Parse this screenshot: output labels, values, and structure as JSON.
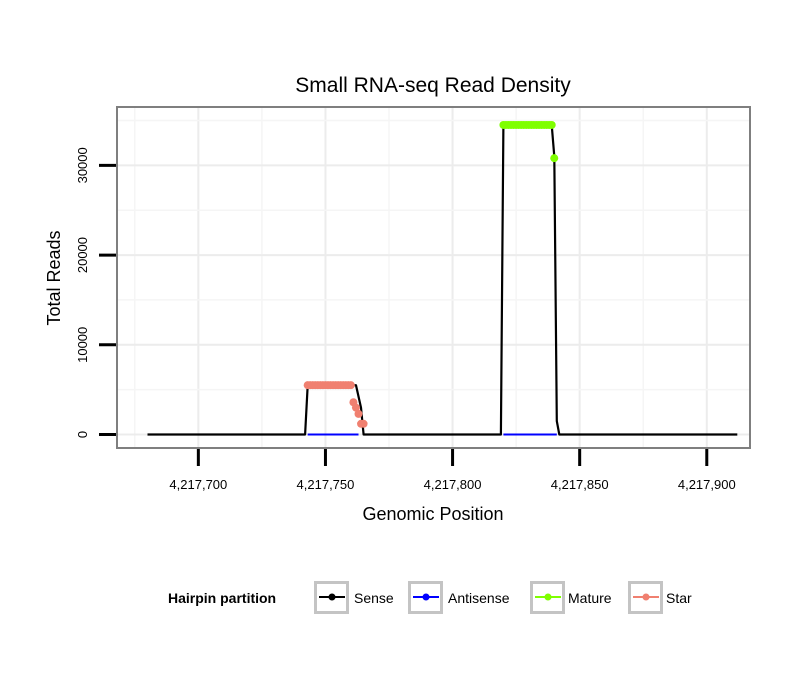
{
  "chart_data": {
    "type": "line",
    "title": "Small RNA-seq Read Density",
    "xlabel": "Genomic Position",
    "ylabel": "Total Reads",
    "xlim": [
      4217668,
      4217917
    ],
    "ylim": [
      -1500,
      36500
    ],
    "x_ticks": [
      4217700,
      4217750,
      4217800,
      4217850,
      4217900
    ],
    "x_tick_labels": [
      "4,217,700",
      "4,217,750",
      "4,217,800",
      "4,217,850",
      "4,217,900"
    ],
    "y_ticks": [
      0,
      10000,
      20000,
      30000
    ],
    "y_tick_labels": [
      "0",
      "10000",
      "20000",
      "30000"
    ],
    "grid": true,
    "legend": {
      "title": "Hairpin partition",
      "placement": "bottom",
      "entries": [
        "Sense",
        "Antisense",
        "Mature",
        "Star"
      ]
    },
    "series": [
      {
        "name": "Sense",
        "color": "#000000",
        "style": "line",
        "x": [
          4217680,
          4217742,
          4217743,
          4217762,
          4217764,
          4217765,
          4217819,
          4217820,
          4217839,
          4217840,
          4217841,
          4217842,
          4217912
        ],
        "y": [
          0,
          0,
          5500,
          5500,
          3000,
          0,
          0,
          34500,
          34500,
          31000,
          1500,
          0,
          0
        ]
      },
      {
        "name": "Antisense",
        "color": "#0000ff",
        "style": "line",
        "x": [
          4217743,
          4217763,
          4217820,
          4217841
        ],
        "y": [
          0,
          0,
          0,
          0
        ],
        "segments": [
          [
            0,
            1
          ],
          [
            2,
            3
          ]
        ]
      },
      {
        "name": "Mature",
        "color": "#7fff00",
        "style": "points",
        "x": [
          4217820,
          4217821,
          4217822,
          4217823,
          4217824,
          4217825,
          4217826,
          4217827,
          4217828,
          4217829,
          4217830,
          4217831,
          4217832,
          4217833,
          4217834,
          4217835,
          4217836,
          4217837,
          4217838,
          4217839,
          4217840
        ],
        "y": [
          34500,
          34500,
          34500,
          34500,
          34500,
          34500,
          34500,
          34500,
          34500,
          34500,
          34500,
          34500,
          34500,
          34500,
          34500,
          34500,
          34500,
          34500,
          34500,
          34500,
          30800
        ]
      },
      {
        "name": "Star",
        "color": "#f08070",
        "style": "points",
        "x": [
          4217743,
          4217744,
          4217745,
          4217746,
          4217747,
          4217748,
          4217749,
          4217750,
          4217751,
          4217752,
          4217753,
          4217754,
          4217755,
          4217756,
          4217757,
          4217758,
          4217759,
          4217760,
          4217761,
          4217762,
          4217763,
          4217764,
          4217765
        ],
        "y": [
          5500,
          5500,
          5500,
          5500,
          5500,
          5500,
          5500,
          5500,
          5500,
          5500,
          5500,
          5500,
          5500,
          5500,
          5500,
          5500,
          5500,
          5500,
          3600,
          3000,
          2300,
          1200,
          1200
        ]
      }
    ]
  }
}
